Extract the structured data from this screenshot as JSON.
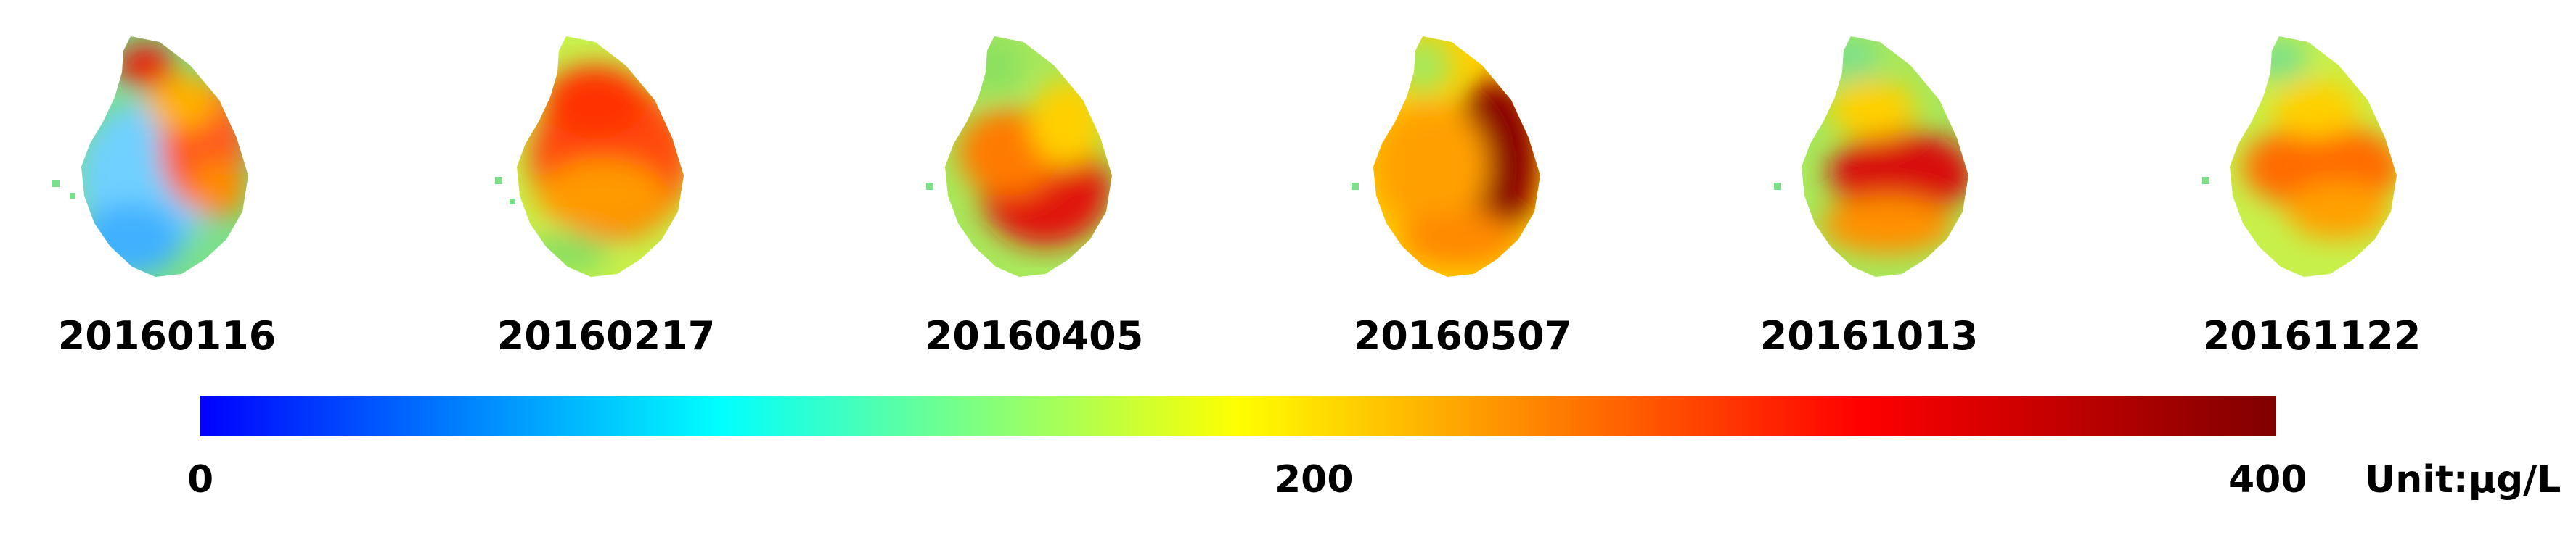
{
  "maps": [
    {
      "date": "20160116"
    },
    {
      "date": "20160217"
    },
    {
      "date": "20160405"
    },
    {
      "date": "20160507"
    },
    {
      "date": "20161013"
    },
    {
      "date": "20161122"
    }
  ],
  "colorbar": {
    "min": 0,
    "max": 400,
    "tick_labels": [
      "0",
      "200",
      "400"
    ],
    "unit_label": "Unit:µg/L",
    "colors": [
      "#0000ff",
      "#00ffff",
      "#ffff00",
      "#ff0000",
      "#800000"
    ]
  }
}
